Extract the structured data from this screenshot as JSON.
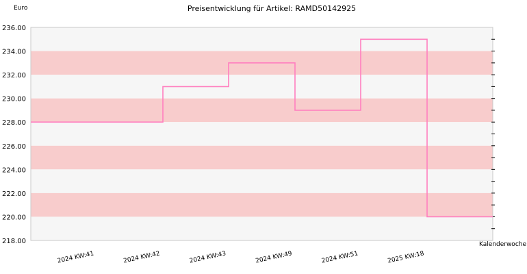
{
  "chart_data": {
    "type": "line",
    "step": true,
    "title": "Preisentwicklung für Artikel: RAMD50142925",
    "ylabel": "Euro",
    "xlabel": "Kalenderwoche",
    "ylim": [
      218,
      236
    ],
    "yticks": [
      "218.00",
      "220.00",
      "222.00",
      "224.00",
      "226.00",
      "228.00",
      "230.00",
      "232.00",
      "234.00",
      "236.00"
    ],
    "categories": [
      "2024 KW:41",
      "2024 KW:42",
      "2024 KW:43",
      "2024 KW:49",
      "2024 KW:51",
      "2025 KW:18"
    ],
    "series": [
      {
        "values": [
          228,
          231,
          233,
          229,
          235,
          220
        ]
      }
    ],
    "grid": true,
    "legend": "none",
    "colors": {
      "line": "#ff7fbf",
      "band_dark": "#f8cccc",
      "band_light": "#f6f6f6",
      "frame": "#c8c8c8"
    }
  }
}
